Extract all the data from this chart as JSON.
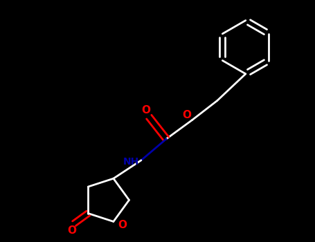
{
  "bg_color": "#000000",
  "bond_color": "#ffffff",
  "o_color": "#ff0000",
  "n_color": "#0000aa",
  "line_width": 2.0,
  "figsize": [
    4.55,
    3.5
  ],
  "dpi": 100,
  "xlim": [
    0,
    10
  ],
  "ylim": [
    0,
    7.7
  ]
}
